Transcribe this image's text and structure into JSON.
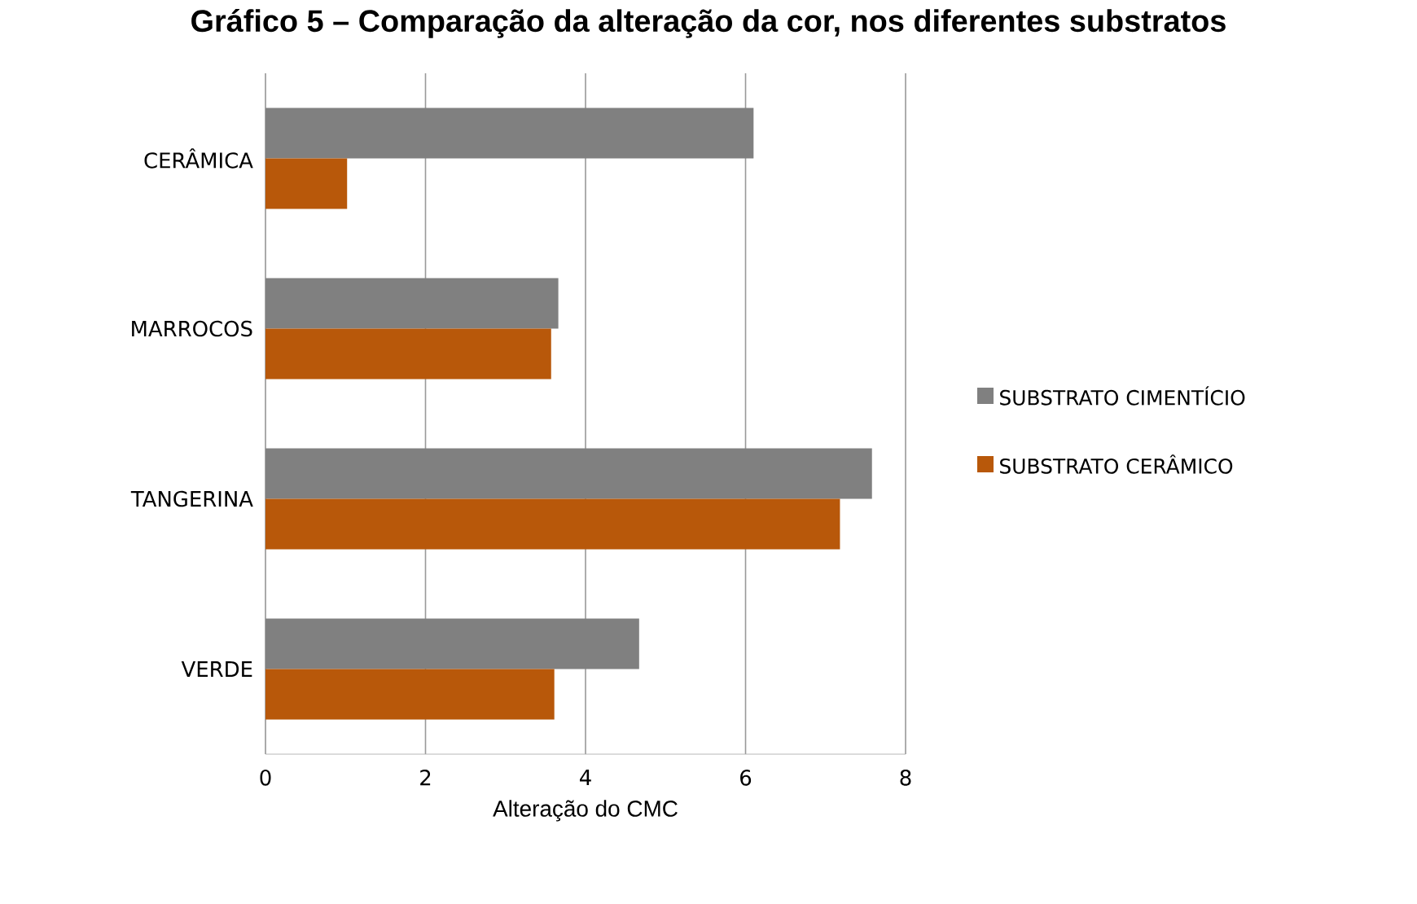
{
  "chart_data": {
    "type": "bar",
    "orientation": "horizontal",
    "title": "Gráfico 5 – Comparação da alteração da cor, nos diferentes substratos",
    "xlabel": "Alteração do CMC",
    "categories": [
      "CERÂMICA",
      "MARROCOS",
      "TANGERINA",
      "VERDE"
    ],
    "series": [
      {
        "name": "SUBSTRATO CIMENTÍCIO",
        "color": "#808080",
        "values": [
          6.1,
          3.66,
          7.58,
          4.67
        ]
      },
      {
        "name": "SUBSTRATO CERÂMICO",
        "color": "#b8580a",
        "values": [
          1.02,
          3.57,
          7.18,
          3.61
        ]
      }
    ],
    "xlim": [
      0,
      8
    ],
    "xticks": [
      0,
      2,
      4,
      6,
      8
    ],
    "grid": "x",
    "legend": "right"
  }
}
